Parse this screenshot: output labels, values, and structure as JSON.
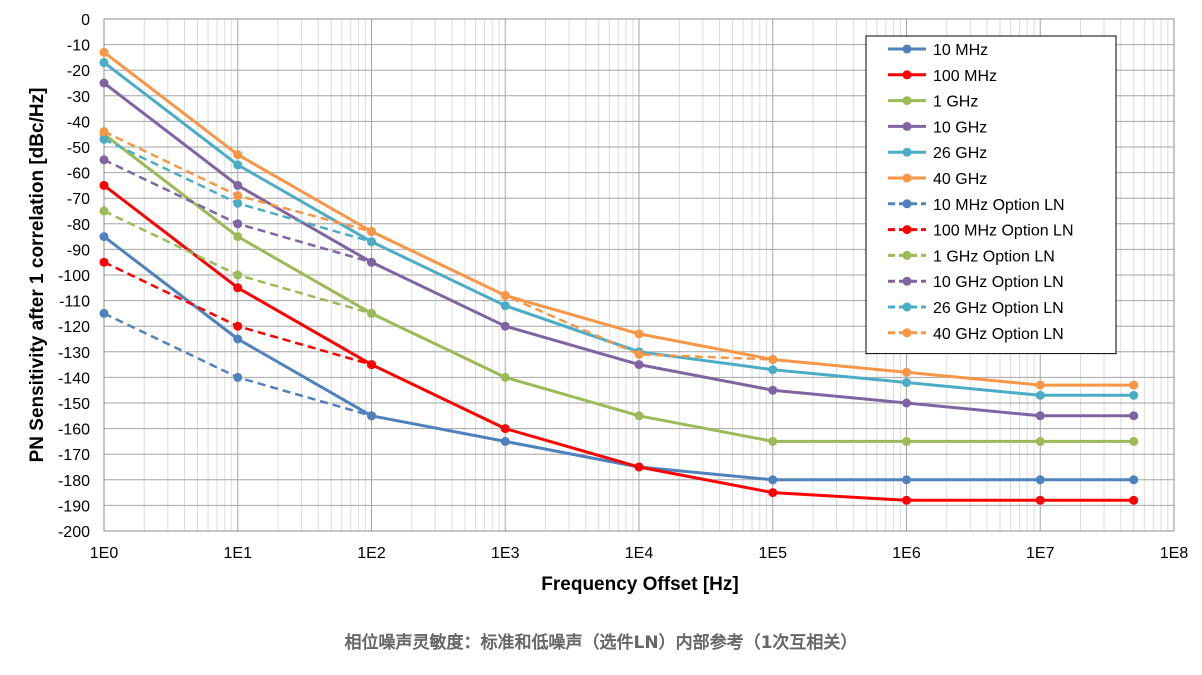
{
  "caption": "相位噪声灵敏度：标准和低噪声（选件LN）内部参考（1次互相关）",
  "chart_data": {
    "type": "line",
    "x_scale": "log",
    "xlabel": "Frequency Offset [Hz]",
    "ylabel": "PN Sensitivity after 1 correlation [dBc/Hz]",
    "xlim": [
      1,
      100000000
    ],
    "ylim": [
      -200,
      0
    ],
    "x_ticks": [
      1,
      10,
      100,
      1000,
      10000,
      100000,
      1000000,
      10000000,
      100000000
    ],
    "x_tick_labels": [
      "1E0",
      "1E1",
      "1E2",
      "1E3",
      "1E4",
      "1E5",
      "1E6",
      "1E7",
      "1E8"
    ],
    "y_ticks": [
      0,
      -10,
      -20,
      -30,
      -40,
      -50,
      -60,
      -70,
      -80,
      -90,
      -100,
      -110,
      -120,
      -130,
      -140,
      -150,
      -160,
      -170,
      -180,
      -190,
      -200
    ],
    "y_tick_labels": [
      "0",
      "-10",
      "-20",
      "-30",
      "-40",
      "-50",
      "-60",
      "-70",
      "-80",
      "-90",
      "-100",
      "-110",
      "-120",
      "-130",
      "-140",
      "-150",
      "-160",
      "-170",
      "-180",
      "-190",
      "-200"
    ],
    "grid": true,
    "legend_position": "top-right",
    "series": [
      {
        "name": "10 MHz",
        "color": "#4F81BD",
        "dash": false,
        "x": [
          1,
          10,
          100,
          1000,
          10000,
          100000,
          1000000,
          10000000,
          50000000
        ],
        "y": [
          -85,
          -125,
          -155,
          -165,
          -175,
          -180,
          -180,
          -180,
          -180
        ]
      },
      {
        "name": "100 MHz",
        "color": "#FF0000",
        "dash": false,
        "x": [
          1,
          10,
          100,
          1000,
          10000,
          100000,
          1000000,
          10000000,
          50000000
        ],
        "y": [
          -65,
          -105,
          -135,
          -160,
          -175,
          -185,
          -188,
          -188,
          -188
        ]
      },
      {
        "name": "1 GHz",
        "color": "#9BBB59",
        "dash": false,
        "x": [
          1,
          10,
          100,
          1000,
          10000,
          100000,
          1000000,
          10000000,
          50000000
        ],
        "y": [
          -45,
          -85,
          -115,
          -140,
          -155,
          -165,
          -165,
          -165,
          -165
        ]
      },
      {
        "name": "10 GHz",
        "color": "#8064A2",
        "dash": false,
        "x": [
          1,
          10,
          100,
          1000,
          10000,
          100000,
          1000000,
          10000000,
          50000000
        ],
        "y": [
          -25,
          -65,
          -95,
          -120,
          -135,
          -145,
          -150,
          -155,
          -155
        ]
      },
      {
        "name": "26 GHz",
        "color": "#4BACC6",
        "dash": false,
        "x": [
          1,
          10,
          100,
          1000,
          10000,
          100000,
          1000000,
          10000000,
          50000000
        ],
        "y": [
          -17,
          -57,
          -87,
          -112,
          -130,
          -137,
          -142,
          -147,
          -147
        ]
      },
      {
        "name": "40 GHz",
        "color": "#F79646",
        "dash": false,
        "x": [
          1,
          10,
          100,
          1000,
          10000,
          100000,
          1000000,
          10000000,
          50000000
        ],
        "y": [
          -13,
          -53,
          -83,
          -108,
          -123,
          -133,
          -138,
          -143,
          -143
        ]
      },
      {
        "name": "10 MHz Option LN",
        "color": "#4F81BD",
        "dash": true,
        "x": [
          1,
          10,
          100
        ],
        "y": [
          -115,
          -140,
          -155
        ]
      },
      {
        "name": "100 MHz Option LN",
        "color": "#FF0000",
        "dash": true,
        "x": [
          1,
          10,
          100
        ],
        "y": [
          -95,
          -120,
          -135
        ]
      },
      {
        "name": "1 GHz Option LN",
        "color": "#9BBB59",
        "dash": true,
        "x": [
          1,
          10,
          100
        ],
        "y": [
          -75,
          -100,
          -115
        ]
      },
      {
        "name": "10 GHz Option LN",
        "color": "#8064A2",
        "dash": true,
        "x": [
          1,
          10,
          100
        ],
        "y": [
          -55,
          -80,
          -95
        ]
      },
      {
        "name": "26 GHz Option LN",
        "color": "#4BACC6",
        "dash": true,
        "x": [
          1,
          10,
          100
        ],
        "y": [
          -47,
          -72,
          -87
        ]
      },
      {
        "name": "40 GHz Option LN",
        "color": "#F79646",
        "dash": true,
        "x": [
          1,
          10,
          100,
          1000,
          10000,
          100000
        ],
        "y": [
          -44,
          -69,
          -83,
          -108,
          -131,
          -133
        ]
      }
    ]
  }
}
